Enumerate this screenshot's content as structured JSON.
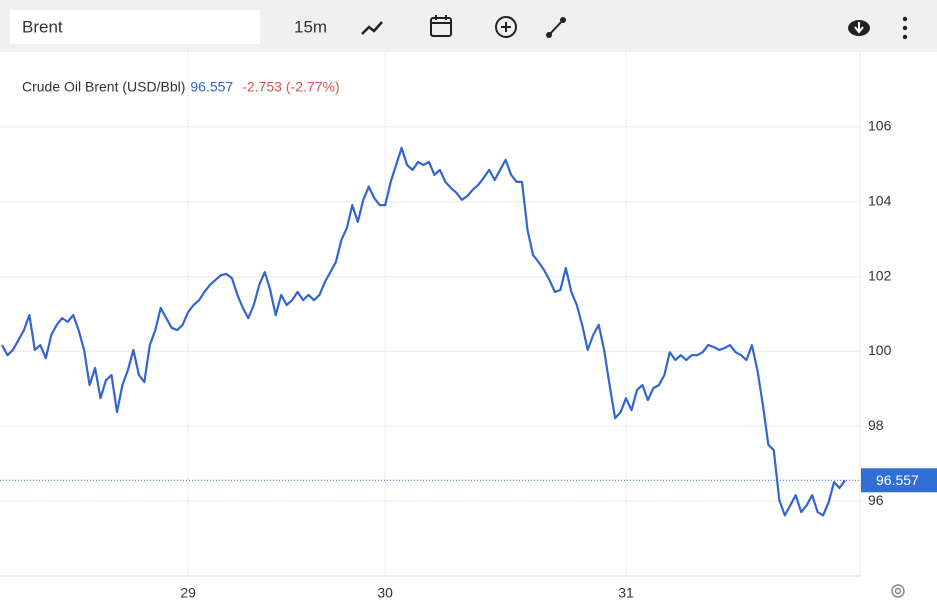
{
  "toolbar": {
    "search": "Brent",
    "interval": "15m"
  },
  "chart_data": {
    "type": "line",
    "title": "Crude Oil Brent (USD/Bbl)",
    "last_value": 96.557,
    "change": -2.753,
    "change_label": "(-2.77%)",
    "xlim": [
      0,
      154
    ],
    "xticks": [
      {
        "value": 34,
        "label": "29"
      },
      {
        "value": 70,
        "label": "30"
      },
      {
        "value": 114,
        "label": "31"
      }
    ],
    "ylim": [
      94,
      108
    ],
    "yticks": [
      96,
      98,
      100,
      102,
      104,
      106
    ],
    "grid": true,
    "series": [
      {
        "color": "#3366cc",
        "values": [
          100.17,
          99.9,
          100.04,
          100.3,
          100.57,
          100.97,
          100.04,
          100.17,
          99.82,
          100.44,
          100.71,
          100.89,
          100.79,
          100.97,
          100.57,
          100.04,
          99.1,
          99.56,
          98.75,
          99.23,
          99.37,
          98.38,
          99.1,
          99.5,
          100.04,
          99.37,
          99.18,
          100.17,
          100.57,
          101.16,
          100.89,
          100.63,
          100.57,
          100.71,
          101.05,
          101.24,
          101.37,
          101.59,
          101.78,
          101.91,
          102.04,
          102.07,
          101.96,
          101.51,
          101.16,
          100.89,
          101.24,
          101.78,
          102.12,
          101.64,
          100.97,
          101.51,
          101.24,
          101.37,
          101.59,
          101.37,
          101.51,
          101.37,
          101.51,
          101.86,
          102.12,
          102.39,
          102.98,
          103.3,
          103.91,
          103.46,
          104.05,
          104.4,
          104.1,
          103.91,
          103.91,
          104.53,
          104.98,
          105.44,
          104.98,
          104.85,
          105.06,
          104.98,
          105.06,
          104.72,
          104.85,
          104.53,
          104.37,
          104.24,
          104.05,
          104.15,
          104.32,
          104.45,
          104.64,
          104.85,
          104.58,
          104.85,
          105.12,
          104.72,
          104.53,
          104.53,
          103.25,
          102.58,
          102.39,
          102.18,
          101.91,
          101.59,
          101.64,
          102.23,
          101.59,
          101.24,
          100.71,
          100.04,
          100.44,
          100.71,
          100.04,
          99.1,
          98.22,
          98.38,
          98.75,
          98.43,
          98.97,
          99.1,
          98.7,
          99.02,
          99.1,
          99.37,
          99.98,
          99.77,
          99.9,
          99.77,
          99.9,
          99.9,
          99.98,
          100.17,
          100.12,
          100.04,
          100.09,
          100.17,
          99.98,
          99.9,
          99.77,
          100.17,
          99.5,
          98.57,
          97.5,
          97.36,
          96.03,
          95.62,
          95.89,
          96.16,
          95.71,
          95.89,
          96.16,
          95.71,
          95.62,
          95.97,
          96.51,
          96.35,
          96.557
        ]
      }
    ]
  }
}
